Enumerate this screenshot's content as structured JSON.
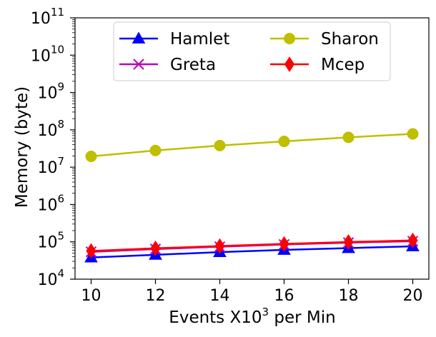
{
  "chart_data": {
    "type": "line",
    "title": "",
    "xlabel_prefix": "Events X10",
    "xlabel_sup": "3",
    "xlabel_suffix": " per Min",
    "ylabel": "Memory (byte)",
    "x": [
      10,
      12,
      14,
      16,
      18,
      20
    ],
    "xlim": [
      9.5,
      20.5
    ],
    "ylim": [
      10000,
      100000000000
    ],
    "y_scale": "log",
    "y_tick_base": "10",
    "y_tick_exponents": [
      "4",
      "5",
      "6",
      "7",
      "8",
      "9",
      "10",
      "11"
    ],
    "x_tick_labels": [
      "10",
      "12",
      "14",
      "16",
      "18",
      "20"
    ],
    "legend_position": "top-center",
    "series": [
      {
        "name": "Hamlet",
        "color": "#0000ff",
        "marker": "triangle",
        "values": [
          38000,
          45000,
          53000,
          61000,
          68000,
          76000
        ]
      },
      {
        "name": "Greta",
        "color": "#bf00bf",
        "marker": "x",
        "values": [
          54000,
          64000,
          74000,
          85000,
          95000,
          104000
        ]
      },
      {
        "name": "Sharon",
        "color": "#bfbf00",
        "marker": "circle",
        "values": [
          19500000,
          28000000,
          38000000,
          49000000,
          63000000,
          78000000
        ]
      },
      {
        "name": "Mcep",
        "color": "#ff0000",
        "marker": "diamond",
        "values": [
          57000,
          67000,
          77000,
          88000,
          99000,
          109000
        ]
      }
    ],
    "legend_order": [
      "Hamlet",
      "Greta",
      "Sharon",
      "Mcep"
    ]
  }
}
